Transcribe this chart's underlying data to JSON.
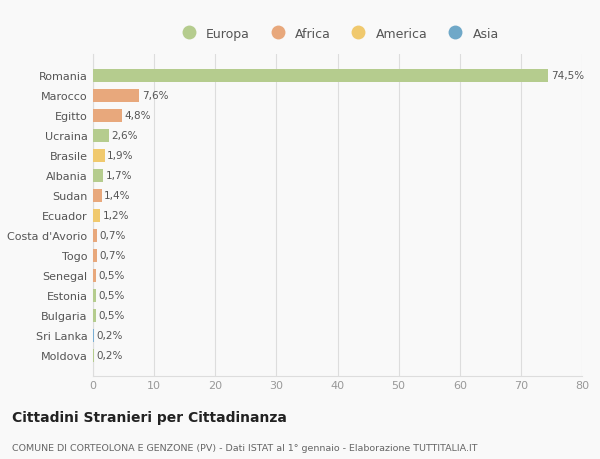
{
  "countries": [
    "Romania",
    "Marocco",
    "Egitto",
    "Ucraina",
    "Brasile",
    "Albania",
    "Sudan",
    "Ecuador",
    "Costa d'Avorio",
    "Togo",
    "Senegal",
    "Estonia",
    "Bulgaria",
    "Sri Lanka",
    "Moldova"
  ],
  "values": [
    74.5,
    7.6,
    4.8,
    2.6,
    1.9,
    1.7,
    1.4,
    1.2,
    0.7,
    0.7,
    0.5,
    0.5,
    0.5,
    0.2,
    0.2
  ],
  "labels": [
    "74,5%",
    "7,6%",
    "4,8%",
    "2,6%",
    "1,9%",
    "1,7%",
    "1,4%",
    "1,2%",
    "0,7%",
    "0,7%",
    "0,5%",
    "0,5%",
    "0,5%",
    "0,2%",
    "0,2%"
  ],
  "colors": [
    "#b5cc8e",
    "#e8a87c",
    "#e8a87c",
    "#b5cc8e",
    "#f0c96e",
    "#b5cc8e",
    "#e8a87c",
    "#f0c96e",
    "#e8a87c",
    "#e8a87c",
    "#e8a87c",
    "#b5cc8e",
    "#b5cc8e",
    "#7bafd4",
    "#b5cc8e"
  ],
  "legend": [
    {
      "label": "Europa",
      "color": "#b5cc8e"
    },
    {
      "label": "Africa",
      "color": "#e8a87c"
    },
    {
      "label": "America",
      "color": "#f0c96e"
    },
    {
      "label": "Asia",
      "color": "#6fa8c8"
    }
  ],
  "title": "Cittadini Stranieri per Cittadinanza",
  "subtitle": "COMUNE DI CORTEOLONA E GENZONE (PV) - Dati ISTAT al 1° gennaio - Elaborazione TUTTITALIA.IT",
  "xlim": [
    0,
    80
  ],
  "xticks": [
    0,
    10,
    20,
    30,
    40,
    50,
    60,
    70,
    80
  ],
  "background_color": "#f9f9f9",
  "grid_color": "#dddddd"
}
